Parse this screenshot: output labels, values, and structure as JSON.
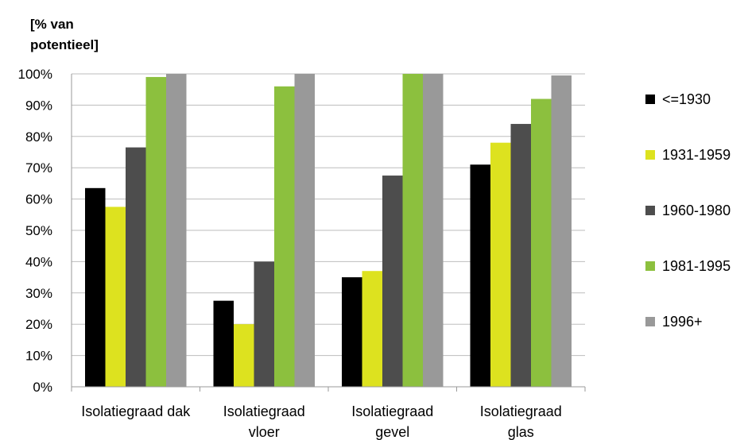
{
  "chart_data": {
    "type": "bar",
    "title": "",
    "ylabel_lines": [
      "[% van",
      "potentieel]"
    ],
    "xlabel": "",
    "categories": [
      [
        "Isolatiegraad dak"
      ],
      [
        "Isolatiegraad",
        "vloer"
      ],
      [
        "Isolatiegraad",
        "gevel"
      ],
      [
        "Isolatiegraad",
        "glas"
      ]
    ],
    "series": [
      {
        "name": "<=1930",
        "color": "#000000",
        "values": [
          63.5,
          27.5,
          35,
          71
        ]
      },
      {
        "name": "1931-1959",
        "color": "#dde21f",
        "values": [
          57.5,
          20,
          37,
          78
        ]
      },
      {
        "name": "1960-1980",
        "color": "#4d4d4d",
        "values": [
          76.5,
          40,
          67.5,
          84
        ]
      },
      {
        "name": "1981-1995",
        "color": "#8cc03e",
        "values": [
          99,
          96,
          100,
          92
        ]
      },
      {
        "name": "1996+",
        "color": "#999999",
        "values": [
          100,
          100,
          100,
          99.5
        ]
      }
    ],
    "ylim": [
      0,
      100
    ],
    "yticks": [
      0,
      10,
      20,
      30,
      40,
      50,
      60,
      70,
      80,
      90,
      100
    ],
    "ytick_suffix": "%",
    "grid": true,
    "legend_position": "right"
  }
}
